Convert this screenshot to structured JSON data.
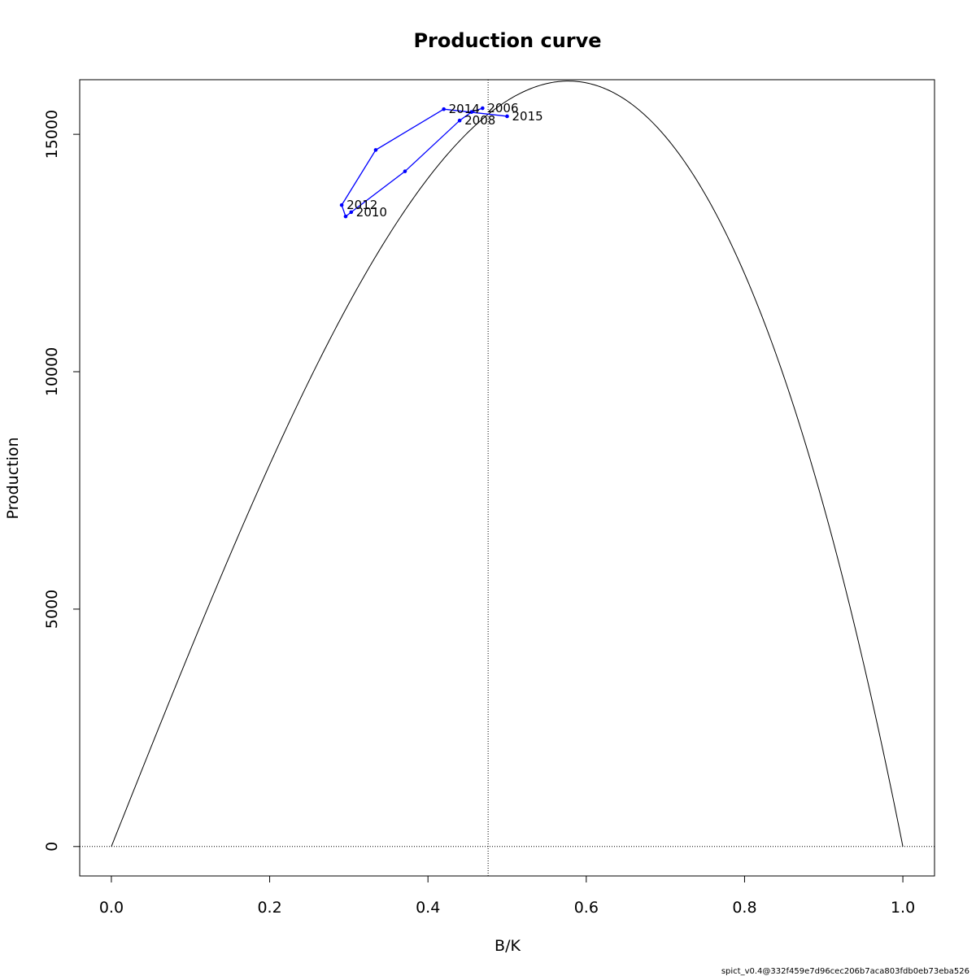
{
  "chart_data": {
    "type": "line",
    "title": "Production curve",
    "xlabel": "B/K",
    "ylabel": "Production",
    "xlim": [
      -0.04,
      1.04
    ],
    "ylim": [
      -620,
      16150
    ],
    "x_ticks": [
      0.0,
      0.2,
      0.4,
      0.6,
      0.8,
      1.0
    ],
    "x_tick_labels": [
      "0.0",
      "0.2",
      "0.4",
      "0.6",
      "0.8",
      "1.0"
    ],
    "y_ticks": [
      0,
      5000,
      10000,
      15000
    ],
    "y_tick_labels": [
      "0",
      "5000",
      "10000",
      "15000"
    ],
    "curve": {
      "description": "theoretical production curve",
      "peak_x": 0.476,
      "peak_y": 15420,
      "x_intercepts": [
        0.0,
        1.0
      ],
      "color": "#000000"
    },
    "reference_lines": {
      "vertical_x": 0.476,
      "horizontal_y": 0,
      "style": "dotted"
    },
    "series": [
      {
        "color": "#0000ff",
        "points": [
          {
            "x": 0.469,
            "y": 15550,
            "label": "2006"
          },
          {
            "x": 0.455,
            "y": 15470,
            "label": ""
          },
          {
            "x": 0.44,
            "y": 15290,
            "label": "2008"
          },
          {
            "x": 0.371,
            "y": 14220,
            "label": ""
          },
          {
            "x": 0.303,
            "y": 13360,
            "label": "2010"
          },
          {
            "x": 0.296,
            "y": 13270,
            "label": ""
          },
          {
            "x": 0.291,
            "y": 13510,
            "label": "2012"
          },
          {
            "x": 0.334,
            "y": 14670,
            "label": ""
          },
          {
            "x": 0.42,
            "y": 15530,
            "label": "2014"
          },
          {
            "x": 0.5,
            "y": 15380,
            "label": "2015"
          }
        ]
      }
    ],
    "grid": false,
    "footer": "spict_v0.4@332f459e7d96cec206b7aca803fdb0eb73eba526"
  }
}
